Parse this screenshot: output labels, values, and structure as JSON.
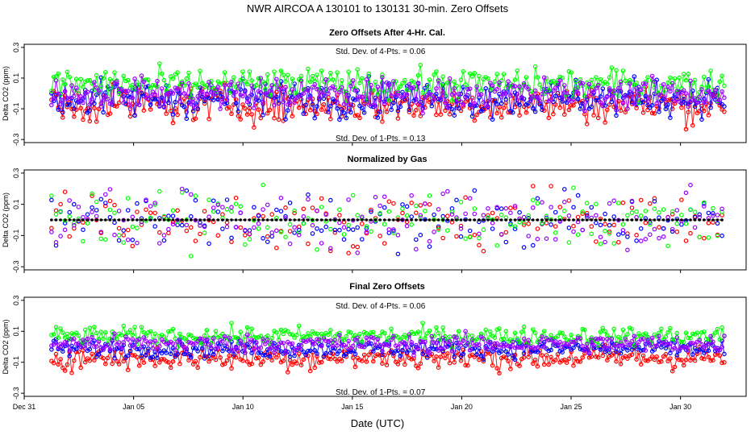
{
  "chart_data": {
    "type": "line",
    "title": "NWR   AIRCOA A   130101 to 130131   30-min. Zero Offsets",
    "xlabel": "Date (UTC)",
    "x_range_days": [
      0,
      33
    ],
    "x_ticks": [
      {
        "label": "Dec 31",
        "day": 0
      },
      {
        "label": "Jan 05",
        "day": 5
      },
      {
        "label": "Jan 10",
        "day": 10
      },
      {
        "label": "Jan 15",
        "day": 15
      },
      {
        "label": "Jan 20",
        "day": 20
      },
      {
        "label": "Jan 25",
        "day": 25
      },
      {
        "label": "Jan 30",
        "day": 30
      }
    ],
    "series_colors": {
      "gas1": "#ff0000",
      "gas2": "#0000ff",
      "gas3": "#00ff00",
      "gas4": "#9900ff",
      "normalized": "#000000"
    },
    "panels": [
      {
        "id": "after-cal",
        "title": "Zero Offsets After 4-Hr. Cal.",
        "ylabel": "Delta CO2 (ppm)",
        "ylim": [
          -0.32,
          0.32
        ],
        "yticks": [
          -0.3,
          -0.1,
          0.1,
          0.3
        ],
        "ytick_labels": [
          "-0.3",
          "-0.1",
          "0.1",
          "0.3"
        ],
        "annotation_top": "Std. Dev. of 4-Pts. =  0.06",
        "annotation_bottom": "Std. Dev. of 1-Pts. =  0.13",
        "series": [
          {
            "name": "gas1",
            "offset": -0.07,
            "spread": 0.06
          },
          {
            "name": "gas2",
            "offset": -0.03,
            "spread": 0.06
          },
          {
            "name": "gas3",
            "offset": 0.06,
            "spread": 0.05
          },
          {
            "name": "gas4",
            "offset": 0.0,
            "spread": 0.05
          }
        ]
      },
      {
        "id": "normalized",
        "title": "Normalized by Gas",
        "ylabel": "Delta CO2 (ppm)",
        "ylim": [
          -0.32,
          0.32
        ],
        "yticks": [
          -0.3,
          -0.1,
          0.1,
          0.3
        ],
        "ytick_labels": [
          "-0.3",
          "-0.1",
          "0.1",
          "0.3"
        ],
        "series": [
          {
            "name": "gas1",
            "offset": 0.0,
            "spread": 0.09
          },
          {
            "name": "gas2",
            "offset": 0.0,
            "spread": 0.09
          },
          {
            "name": "gas3",
            "offset": 0.0,
            "spread": 0.09
          },
          {
            "name": "gas4",
            "offset": 0.0,
            "spread": 0.09
          },
          {
            "name": "normalized",
            "offset": 0.0,
            "spread": 0.0
          }
        ]
      },
      {
        "id": "final",
        "title": "Final Zero Offsets",
        "ylabel": "Delta CO2 (ppm)",
        "ylim": [
          -0.32,
          0.32
        ],
        "yticks": [
          -0.3,
          -0.1,
          0.1,
          0.3
        ],
        "ytick_labels": [
          "-0.3",
          "-0.1",
          "0.1",
          "0.3"
        ],
        "annotation_top": "Std. Dev. of 4-Pts. =  0.06",
        "annotation_bottom": "Std. Dev. of 1-Pts. =  0.07",
        "series": [
          {
            "name": "gas1",
            "offset": -0.07,
            "spread": 0.04
          },
          {
            "name": "gas2",
            "offset": -0.01,
            "spread": 0.03
          },
          {
            "name": "gas3",
            "offset": 0.07,
            "spread": 0.03
          },
          {
            "name": "gas4",
            "offset": 0.02,
            "spread": 0.03
          }
        ]
      }
    ]
  }
}
